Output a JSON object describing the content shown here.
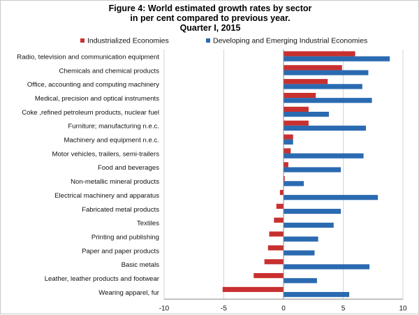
{
  "chart_data": {
    "type": "bar",
    "orientation": "horizontal",
    "title_lines": [
      "Figure 4: World estimated growth rates by sector",
      "in per cent compared to previous year.",
      "Quarter I, 2015"
    ],
    "categories": [
      "Radio, television and communication equipment",
      "Chemicals and chemical products",
      "Office, accounting and computing machinery",
      "Medical, precision and optical instruments",
      "Coke ,refined petroleum products, nuclear fuel",
      "Furniture; manufacturing n.e.c.",
      "Machinery and equipment n.e.c.",
      "Motor vehicles, trailers, semi-trailers",
      "Food and beverages",
      "Non-metallic mineral products",
      "Electrical machinery and apparatus",
      "Fabricated metal products",
      "Textiles",
      "Printing and publishing",
      "Paper and paper products",
      "Basic metals",
      "Leather, leather products and footwear",
      "Wearing apparel, fur"
    ],
    "series": [
      {
        "name": "Industrialized Economies",
        "color": "#c8302f",
        "values": [
          6.0,
          4.9,
          3.7,
          2.7,
          2.1,
          2.1,
          0.8,
          0.6,
          0.4,
          0.1,
          -0.3,
          -0.6,
          -0.8,
          -1.2,
          -1.3,
          -1.6,
          -2.5,
          -5.1
        ]
      },
      {
        "name": "Developing and Emerging Industrial Economies",
        "color": "#2a6ab1",
        "values": [
          8.9,
          7.1,
          6.6,
          7.4,
          3.8,
          6.9,
          0.8,
          6.7,
          4.8,
          1.7,
          7.9,
          4.8,
          4.2,
          2.9,
          2.6,
          7.2,
          2.8,
          5.5
        ]
      }
    ],
    "xlim": [
      -10,
      10
    ],
    "xticks": [
      -10,
      -5,
      0,
      5,
      10
    ],
    "xtick_labels": [
      "-10",
      "-5",
      "0",
      "5",
      "10"
    ],
    "legend_position": "top",
    "grid": "vertical"
  }
}
